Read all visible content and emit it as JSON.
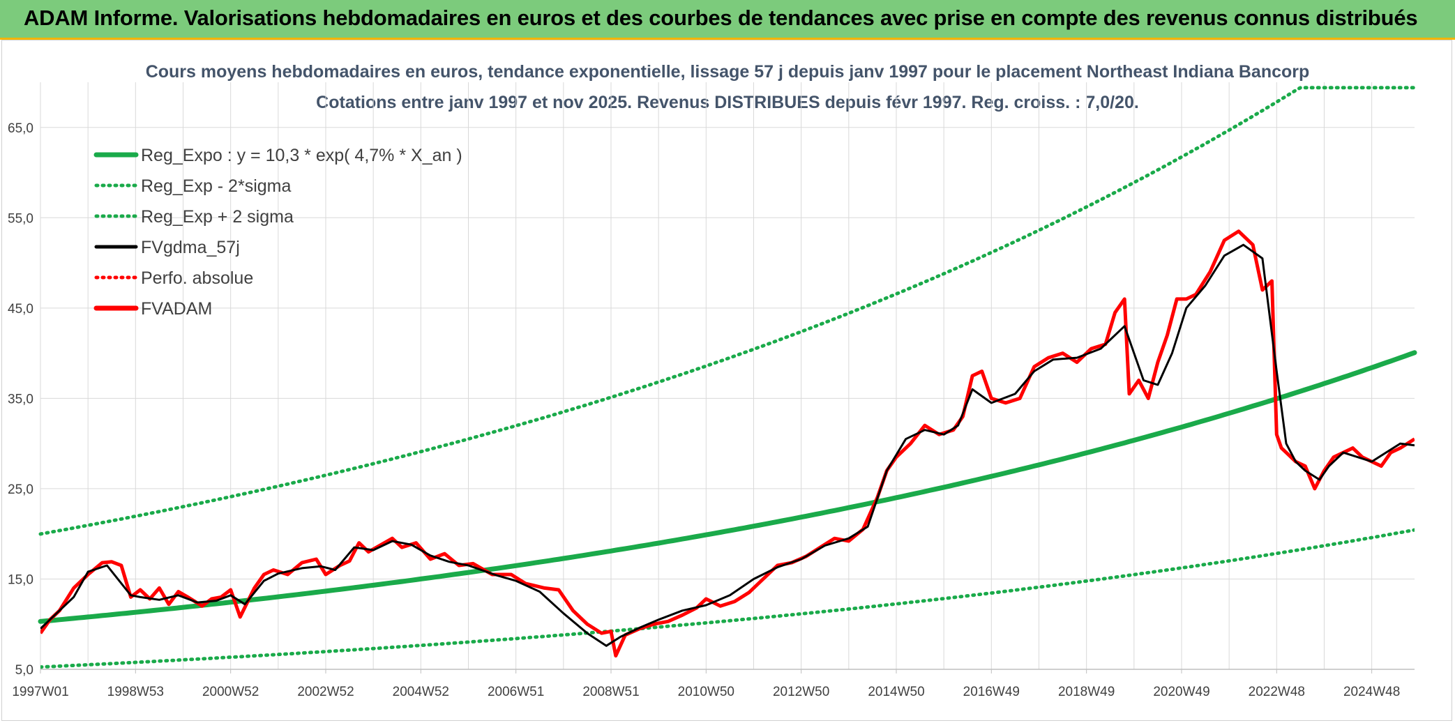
{
  "banner": {
    "title": "ADAM Informe. Valorisations hebdomadaires en euros et des courbes de tendances avec prise en compte des revenus connus distribués"
  },
  "chart_data": {
    "type": "line",
    "title": "Cours moyens hebdomadaires en euros, tendance exponentielle, lissage 57 j depuis janv 1997 pour le placement Northeast Indiana Bancorp",
    "subtitle": "Cotations entre janv 1997 et nov 2025. Revenus DISTRIBUES depuis févr 1997. Reg. croiss. : 7,0/20.",
    "xlabel": "",
    "ylabel": "",
    "ylim": [
      5,
      70
    ],
    "xlim": [
      1997.0,
      2025.9
    ],
    "grid": true,
    "legend_position": "top-left",
    "y_ticks": [
      "5,0",
      "15,0",
      "25,0",
      "35,0",
      "45,0",
      "55,0",
      "65,0"
    ],
    "y_tick_values": [
      5,
      15,
      25,
      35,
      45,
      55,
      65
    ],
    "x_ticks": [
      "1997W01",
      "1998W53",
      "2000W52",
      "2002W52",
      "2004W52",
      "2006W51",
      "2008W51",
      "2010W50",
      "2012W50",
      "2014W50",
      "2016W49",
      "2018W49",
      "2020W49",
      "2022W48",
      "2024W48"
    ],
    "x_tick_values": [
      1997.0,
      1999.0,
      2001.0,
      2003.0,
      2005.0,
      2007.0,
      2009.0,
      2011.0,
      2013.0,
      2015.0,
      2017.0,
      2019.0,
      2021.0,
      2023.0,
      2025.0
    ],
    "regression": {
      "base": 10.3,
      "rate": 0.047,
      "sigma_factor_low": 0.51,
      "sigma_factor_high": 1.94
    },
    "series": [
      {
        "name": "Reg_Expo : y = 10,3 * exp( 4,7% *  X_an )",
        "color": "#1aaa4a",
        "style": "solid-thick"
      },
      {
        "name": "Reg_Exp - 2*sigma",
        "color": "#1aaa4a",
        "style": "dotted"
      },
      {
        "name": "Reg_Exp + 2 sigma",
        "color": "#1aaa4a",
        "style": "dotted"
      },
      {
        "name": "FVgdma_57j",
        "color": "#000000",
        "style": "solid",
        "x": [
          1997.0,
          1997.3,
          1997.7,
          1998.0,
          1998.4,
          1998.9,
          1999.1,
          1999.5,
          1999.9,
          2000.3,
          2000.7,
          2001.0,
          2001.3,
          2001.7,
          2002.0,
          2002.5,
          2002.9,
          2003.2,
          2003.6,
          2004.0,
          2004.4,
          2004.8,
          2005.2,
          2005.6,
          2006.0,
          2006.6,
          2007.0,
          2007.5,
          2008.0,
          2008.5,
          2008.9,
          2009.2,
          2009.6,
          2010.0,
          2010.5,
          2011.0,
          2011.5,
          2012.0,
          2012.5,
          2013.0,
          2013.5,
          2014.0,
          2014.4,
          2014.8,
          2015.2,
          2015.6,
          2016.0,
          2016.3,
          2016.6,
          2017.0,
          2017.5,
          2017.9,
          2018.3,
          2018.8,
          2019.3,
          2019.8,
          2020.2,
          2020.5,
          2020.8,
          2021.1,
          2021.5,
          2021.9,
          2022.3,
          2022.7,
          2023.0,
          2023.2,
          2023.4,
          2023.6,
          2023.9,
          2024.1,
          2024.4,
          2024.7,
          2025.0,
          2025.3,
          2025.6,
          2025.9
        ],
        "values": [
          9.5,
          11.0,
          13.0,
          15.8,
          16.5,
          13.2,
          13.0,
          12.7,
          13.2,
          12.4,
          12.6,
          13.2,
          12.2,
          14.8,
          15.6,
          16.2,
          16.4,
          16.0,
          18.5,
          18.2,
          19.2,
          18.8,
          17.6,
          16.9,
          16.5,
          15.4,
          14.8,
          13.6,
          11.2,
          9.0,
          7.6,
          8.6,
          9.6,
          10.5,
          11.5,
          12.1,
          13.2,
          15.0,
          16.3,
          17.2,
          18.7,
          19.5,
          20.8,
          27.0,
          30.5,
          31.5,
          31.0,
          32.0,
          36.0,
          34.5,
          35.5,
          38.0,
          39.3,
          39.5,
          40.5,
          43.0,
          37.0,
          36.5,
          40.0,
          45.0,
          47.5,
          50.8,
          52.0,
          50.5,
          38.0,
          30.0,
          28.0,
          27.0,
          26.0,
          27.5,
          29.0,
          28.5,
          28.0,
          29.0,
          30.0,
          29.8
        ]
      },
      {
        "name": "Perfo. absolue",
        "color": "#ff0000",
        "style": "dotted"
      },
      {
        "name": "FVADAM",
        "color": "#ff0000",
        "style": "solid-thick",
        "x": [
          1997.0,
          1997.2,
          1997.4,
          1997.7,
          1998.0,
          1998.3,
          1998.5,
          1998.7,
          1998.9,
          1999.1,
          1999.3,
          1999.5,
          1999.7,
          1999.9,
          2000.1,
          2000.4,
          2000.6,
          2000.8,
          2001.0,
          2001.2,
          2001.5,
          2001.7,
          2001.9,
          2002.2,
          2002.5,
          2002.8,
          2003.0,
          2003.3,
          2003.5,
          2003.7,
          2003.9,
          2004.1,
          2004.4,
          2004.6,
          2004.9,
          2005.2,
          2005.5,
          2005.8,
          2006.1,
          2006.5,
          2006.9,
          2007.2,
          2007.6,
          2007.9,
          2008.2,
          2008.5,
          2008.8,
          2009.0,
          2009.1,
          2009.3,
          2009.6,
          2009.9,
          2010.2,
          2010.5,
          2010.8,
          2011.0,
          2011.3,
          2011.6,
          2011.9,
          2012.2,
          2012.5,
          2012.8,
          2013.1,
          2013.4,
          2013.7,
          2014.0,
          2014.3,
          2014.6,
          2014.8,
          2015.0,
          2015.3,
          2015.6,
          2015.9,
          2016.2,
          2016.4,
          2016.6,
          2016.8,
          2017.0,
          2017.3,
          2017.6,
          2017.9,
          2018.2,
          2018.5,
          2018.8,
          2019.1,
          2019.4,
          2019.6,
          2019.8,
          2019.9,
          2020.1,
          2020.3,
          2020.5,
          2020.7,
          2020.9,
          2021.1,
          2021.3,
          2021.6,
          2021.9,
          2022.2,
          2022.5,
          2022.7,
          2022.9,
          2023.0,
          2023.1,
          2023.2,
          2023.4,
          2023.6,
          2023.8,
          2024.0,
          2024.2,
          2024.4,
          2024.6,
          2024.8,
          2025.0,
          2025.2,
          2025.4,
          2025.6,
          2025.9
        ],
        "values": [
          9.0,
          10.5,
          11.5,
          14.0,
          15.5,
          16.8,
          16.9,
          16.5,
          13.0,
          13.8,
          12.8,
          14.0,
          12.2,
          13.6,
          13.0,
          12.0,
          12.8,
          13.0,
          13.8,
          10.8,
          14.0,
          15.5,
          16.0,
          15.5,
          16.8,
          17.2,
          15.5,
          16.5,
          17.0,
          19.0,
          18.0,
          18.6,
          19.5,
          18.5,
          19.0,
          17.2,
          17.8,
          16.5,
          16.7,
          15.5,
          15.5,
          14.5,
          14.0,
          13.8,
          11.5,
          10.0,
          9.0,
          9.2,
          6.5,
          8.8,
          9.5,
          10.0,
          10.3,
          11.0,
          11.8,
          12.8,
          12.0,
          12.5,
          13.5,
          15.0,
          16.5,
          16.8,
          17.5,
          18.5,
          19.5,
          19.2,
          20.5,
          24.0,
          27.0,
          28.5,
          30.0,
          32.0,
          31.0,
          31.5,
          33.0,
          37.5,
          38.0,
          35.0,
          34.5,
          35.0,
          38.5,
          39.5,
          40.0,
          39.0,
          40.5,
          41.0,
          44.5,
          46.0,
          35.5,
          37.0,
          35.0,
          39.0,
          42.0,
          46.0,
          46.0,
          46.5,
          49.0,
          52.5,
          53.5,
          52.0,
          47.0,
          48.0,
          31.0,
          29.5,
          29.0,
          28.0,
          27.5,
          25.0,
          27.0,
          28.5,
          29.0,
          29.5,
          28.5,
          28.0,
          27.5,
          29.0,
          29.5,
          30.5
        ]
      }
    ]
  }
}
